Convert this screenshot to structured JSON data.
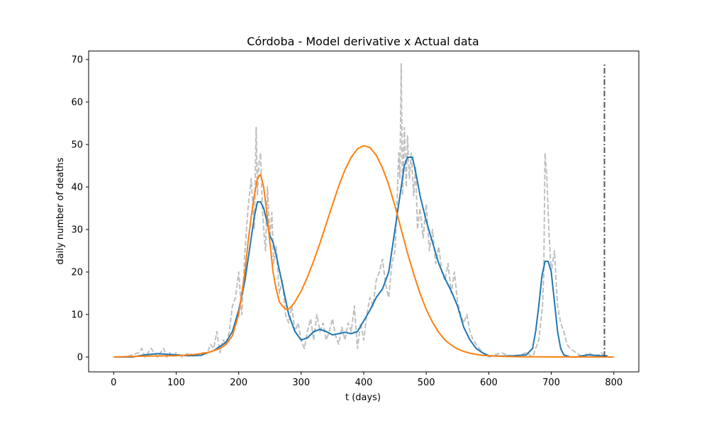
{
  "chart_data": {
    "type": "line",
    "title": "Córdoba - Model derivative x Actual data",
    "xlabel": "t (days)",
    "ylabel": "daily number of deaths",
    "xlim": [
      -40,
      840
    ],
    "ylim": [
      -3.5,
      72
    ],
    "xticks": [
      0,
      100,
      200,
      300,
      400,
      500,
      600,
      700,
      800
    ],
    "yticks": [
      0,
      10,
      20,
      30,
      40,
      50,
      60,
      70
    ],
    "grid": false,
    "legend": "none",
    "series": [
      {
        "role": "actual-data",
        "style": "dashed",
        "color": "#bfbfbf",
        "x": [
          0,
          20,
          40,
          45,
          50,
          55,
          60,
          65,
          70,
          75,
          80,
          85,
          90,
          95,
          100,
          110,
          120,
          130,
          140,
          150,
          155,
          160,
          165,
          170,
          175,
          180,
          185,
          190,
          195,
          200,
          205,
          210,
          215,
          220,
          225,
          228,
          230,
          232,
          235,
          238,
          240,
          243,
          246,
          250,
          253,
          256,
          260,
          265,
          270,
          275,
          280,
          285,
          290,
          295,
          300,
          305,
          310,
          315,
          320,
          325,
          330,
          335,
          340,
          345,
          350,
          355,
          360,
          365,
          370,
          375,
          380,
          385,
          390,
          395,
          400,
          405,
          410,
          415,
          420,
          425,
          430,
          435,
          440,
          445,
          450,
          453,
          456,
          458,
          460,
          462,
          465,
          468,
          470,
          473,
          476,
          480,
          483,
          486,
          490,
          495,
          500,
          505,
          510,
          515,
          520,
          525,
          530,
          535,
          540,
          545,
          550,
          555,
          560,
          565,
          570,
          575,
          580,
          590,
          600,
          620,
          640,
          660,
          670,
          675,
          680,
          683,
          686,
          688,
          690,
          693,
          696,
          700,
          705,
          710,
          715,
          720,
          725,
          730,
          740,
          750,
          760,
          770,
          780,
          785
        ],
        "y": [
          0,
          0,
          1,
          2,
          0,
          1,
          2,
          1,
          0,
          1,
          2,
          0,
          1,
          0,
          1,
          0,
          1,
          0,
          1,
          1,
          3,
          2,
          6,
          1,
          4,
          3,
          6,
          12,
          14,
          20,
          10,
          25,
          35,
          42,
          30,
          54,
          38,
          45,
          48,
          35,
          30,
          25,
          40,
          28,
          34,
          22,
          26,
          15,
          18,
          10,
          8,
          12,
          6,
          8,
          4,
          2,
          6,
          9,
          4,
          10,
          6,
          8,
          4,
          6,
          9,
          5,
          3,
          7,
          4,
          8,
          6,
          12,
          2,
          8,
          4,
          10,
          14,
          12,
          18,
          20,
          23,
          17,
          14,
          22,
          25,
          35,
          48,
          42,
          69,
          38,
          54,
          40,
          52,
          42,
          48,
          38,
          45,
          30,
          35,
          28,
          36,
          25,
          30,
          22,
          26,
          20,
          18,
          22,
          15,
          20,
          13,
          10,
          8,
          10,
          6,
          4,
          3,
          1,
          0,
          1,
          0,
          1,
          0,
          2,
          4,
          8,
          12,
          20,
          48,
          42,
          30,
          20,
          25,
          12,
          8,
          6,
          3,
          2,
          1,
          0,
          1,
          0,
          1,
          0
        ]
      },
      {
        "role": "smoothed-data",
        "style": "solid",
        "color": "#1f77b4",
        "x": [
          0,
          30,
          50,
          70,
          100,
          120,
          140,
          160,
          180,
          190,
          200,
          210,
          215,
          220,
          225,
          230,
          235,
          240,
          245,
          250,
          255,
          260,
          270,
          280,
          290,
          300,
          310,
          320,
          330,
          340,
          350,
          360,
          370,
          380,
          390,
          400,
          410,
          420,
          430,
          440,
          450,
          460,
          465,
          470,
          478,
          485,
          490,
          500,
          510,
          520,
          530,
          540,
          550,
          560,
          570,
          580,
          590,
          600,
          620,
          640,
          660,
          670,
          675,
          680,
          685,
          690,
          695,
          700,
          705,
          710,
          715,
          720,
          730,
          740,
          750,
          760,
          780,
          790
        ],
        "y": [
          0,
          0,
          0.5,
          0.8,
          0.5,
          0.3,
          0.4,
          1.5,
          3.5,
          6,
          11,
          18,
          23,
          28,
          33,
          36.5,
          36.5,
          35,
          32,
          28.5,
          27,
          24,
          17,
          10,
          6,
          4,
          4.5,
          6,
          6.5,
          6,
          5.2,
          5.5,
          5.8,
          5.5,
          6,
          8.5,
          11,
          14,
          16,
          20,
          30,
          40,
          45,
          47,
          47,
          42,
          38,
          32,
          27,
          22,
          18.5,
          15.5,
          12,
          7,
          4,
          2,
          1,
          0.3,
          0.2,
          0.3,
          0.5,
          2,
          6,
          12,
          19,
          22.5,
          22.5,
          20,
          13,
          6,
          2,
          0.5,
          0,
          0,
          0.3,
          0.5,
          0.3,
          0.3
        ]
      },
      {
        "role": "model-derivative",
        "style": "solid",
        "color": "#ff7f0e",
        "x": [
          0,
          50,
          100,
          130,
          150,
          170,
          180,
          190,
          200,
          210,
          215,
          220,
          225,
          230,
          235,
          240,
          245,
          250,
          255,
          260,
          265,
          270,
          275,
          280,
          285,
          290,
          300,
          310,
          320,
          330,
          340,
          350,
          360,
          370,
          380,
          390,
          400,
          410,
          420,
          430,
          440,
          450,
          460,
          470,
          480,
          490,
          500,
          510,
          520,
          530,
          540,
          550,
          560,
          570,
          580,
          590,
          600,
          620,
          640,
          660,
          680,
          700,
          750,
          800
        ],
        "y": [
          0,
          0.2,
          0.3,
          0.6,
          1.0,
          2.0,
          3.0,
          5.0,
          10.0,
          20.0,
          27.0,
          33.0,
          38.0,
          42.0,
          43.0,
          40.0,
          34.0,
          27.0,
          20.0,
          16.0,
          13.0,
          12.0,
          11.2,
          11.3,
          12.0,
          13.0,
          15.5,
          18.8,
          22.6,
          26.8,
          31.3,
          35.8,
          40.2,
          44.0,
          47.0,
          49.0,
          49.7,
          49.3,
          47.5,
          44.5,
          40.5,
          35.5,
          30.0,
          24.5,
          19.5,
          15.0,
          11.2,
          8.2,
          5.8,
          4.0,
          2.8,
          1.9,
          1.3,
          0.9,
          0.6,
          0.4,
          0.3,
          0.15,
          0.08,
          0.05,
          0.03,
          0.02,
          0.01,
          0
        ]
      },
      {
        "role": "vertical-marker",
        "style": "dashdot",
        "color": "#555555",
        "x": [
          785,
          785
        ],
        "y": [
          0,
          69
        ]
      }
    ]
  }
}
